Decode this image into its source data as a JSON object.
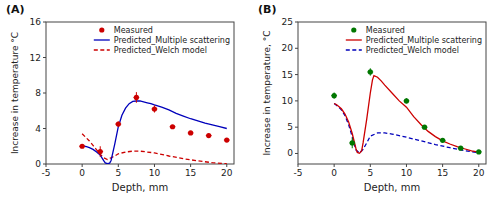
{
  "chart_data": [
    {
      "type": "line",
      "title": "(A)",
      "x_label": "Depth, mm",
      "y_label": "Increase in temperature °C",
      "xlim": [
        -5,
        21
      ],
      "xticks": [
        -5,
        0,
        5,
        10,
        15,
        20
      ],
      "ylim": [
        0,
        16
      ],
      "yticks": [
        0,
        4,
        8,
        12,
        16
      ],
      "legend": "upper right",
      "series": [
        {
          "name": "Measured",
          "type": "scatter",
          "marker": "circle",
          "color": "#cc0000",
          "x": [
            0.0,
            2.5,
            5.0,
            7.5,
            10.0,
            12.5,
            15.0,
            17.5,
            20.0
          ],
          "values": [
            2.0,
            1.4,
            4.5,
            7.5,
            6.2,
            4.2,
            3.5,
            3.2,
            2.7
          ],
          "x_errors": [
            0.4,
            0.4,
            0.4,
            0.4,
            0.4,
            0.4,
            0.4,
            0.4,
            0.4
          ],
          "errors": [
            0.05,
            0.6,
            0.3,
            0.6,
            0.4,
            0.2,
            0.2,
            0.2,
            0.2
          ]
        },
        {
          "name": "Predicted_Multiple scattering",
          "type": "line",
          "line_style": "solid",
          "color": "#0000bb",
          "x": [
            0.0,
            0.3,
            0.6,
            1.0,
            1.5,
            2.0,
            2.5,
            3.0,
            3.2,
            3.5,
            3.8,
            4.0,
            4.5,
            5.0,
            5.5,
            6.0,
            6.5,
            7.0,
            7.5,
            8.0,
            8.5,
            9.0,
            9.5,
            10.0,
            11.0,
            12.0,
            13.0,
            14.0,
            15.0,
            16.0,
            17.0,
            18.0,
            19.0,
            20.0
          ],
          "values": [
            2.0,
            2.0,
            1.95,
            1.85,
            1.65,
            1.35,
            1.0,
            0.35,
            0.12,
            0.03,
            0.1,
            0.4,
            2.2,
            4.2,
            5.5,
            6.3,
            6.8,
            7.05,
            7.1,
            7.1,
            7.0,
            6.9,
            6.8,
            6.65,
            6.4,
            6.1,
            5.7,
            5.4,
            5.1,
            4.85,
            4.6,
            4.4,
            4.2,
            4.0
          ]
        },
        {
          "name": "Predicted_Welch model",
          "type": "line",
          "line_style": "dashed",
          "color": "#cc0000",
          "x": [
            0.0,
            0.5,
            1.0,
            1.5,
            2.0,
            2.5,
            3.0,
            3.5,
            4.0,
            4.5,
            5.0,
            6.0,
            7.0,
            8.0,
            9.0,
            10.0,
            12.0,
            14.0,
            16.0,
            18.0,
            20.0
          ],
          "values": [
            3.4,
            3.0,
            2.6,
            2.1,
            1.6,
            1.1,
            0.7,
            0.5,
            0.7,
            0.9,
            1.15,
            1.35,
            1.45,
            1.45,
            1.35,
            1.25,
            0.9,
            0.6,
            0.35,
            0.15,
            0.03
          ]
        }
      ]
    },
    {
      "type": "line",
      "title": "(B)",
      "x_label": "Depth, mm",
      "y_label": "Increase in temperature, °C",
      "xlim": [
        -5,
        21
      ],
      "xticks": [
        -5,
        0,
        5,
        10,
        15,
        20
      ],
      "ylim": [
        -2,
        25
      ],
      "yticks": [
        0,
        5,
        10,
        15,
        20,
        25
      ],
      "legend": "upper right",
      "series": [
        {
          "name": "Measured",
          "type": "scatter",
          "marker": "circle",
          "color": "#007700",
          "x": [
            0.0,
            2.5,
            5.0,
            10.0,
            12.5,
            15.0,
            17.5,
            20.0
          ],
          "values": [
            11.0,
            2.0,
            15.5,
            10.0,
            5.0,
            2.5,
            1.0,
            0.3
          ],
          "x_errors": [
            0.4,
            0.4,
            0.4,
            0.4,
            0.4,
            0.4,
            0.4,
            0.4
          ],
          "errors": [
            0.6,
            1.0,
            0.7,
            0.5,
            0.4,
            0.3,
            0.2,
            0.15
          ]
        },
        {
          "name": "Predicted_Multiple scattering",
          "type": "line",
          "line_style": "solid",
          "color": "#cc0000",
          "x": [
            0.0,
            0.3,
            0.6,
            1.0,
            1.5,
            2.0,
            2.5,
            3.0,
            3.2,
            3.5,
            3.8,
            4.0,
            4.5,
            5.0,
            5.3,
            5.5,
            6.0,
            6.5,
            7.0,
            8.0,
            9.0,
            10.0,
            11.0,
            12.0,
            13.0,
            14.0,
            15.0,
            16.0,
            17.0,
            18.0,
            19.0,
            20.0
          ],
          "values": [
            9.5,
            9.3,
            9.0,
            8.5,
            7.5,
            6.0,
            3.8,
            1.0,
            0.2,
            0.03,
            0.5,
            2.0,
            6.5,
            11.5,
            14.0,
            14.8,
            14.5,
            13.8,
            13.0,
            11.5,
            10.0,
            8.8,
            7.0,
            5.5,
            4.2,
            3.2,
            2.4,
            1.8,
            1.3,
            0.9,
            0.5,
            0.25
          ]
        },
        {
          "name": "Predicted_Welch model",
          "type": "line",
          "line_style": "dashed",
          "color": "#0000bb",
          "x": [
            0.0,
            0.5,
            1.0,
            1.5,
            2.0,
            2.5,
            3.0,
            3.5,
            4.0,
            4.5,
            5.0,
            6.0,
            7.0,
            8.0,
            9.0,
            10.0,
            12.0,
            14.0,
            16.0,
            18.0,
            20.0
          ],
          "values": [
            9.5,
            9.0,
            8.3,
            7.2,
            5.5,
            3.2,
            0.7,
            0.1,
            0.8,
            2.0,
            3.3,
            3.9,
            3.9,
            3.7,
            3.4,
            3.1,
            2.4,
            1.7,
            1.1,
            0.55,
            0.15
          ]
        }
      ]
    }
  ]
}
